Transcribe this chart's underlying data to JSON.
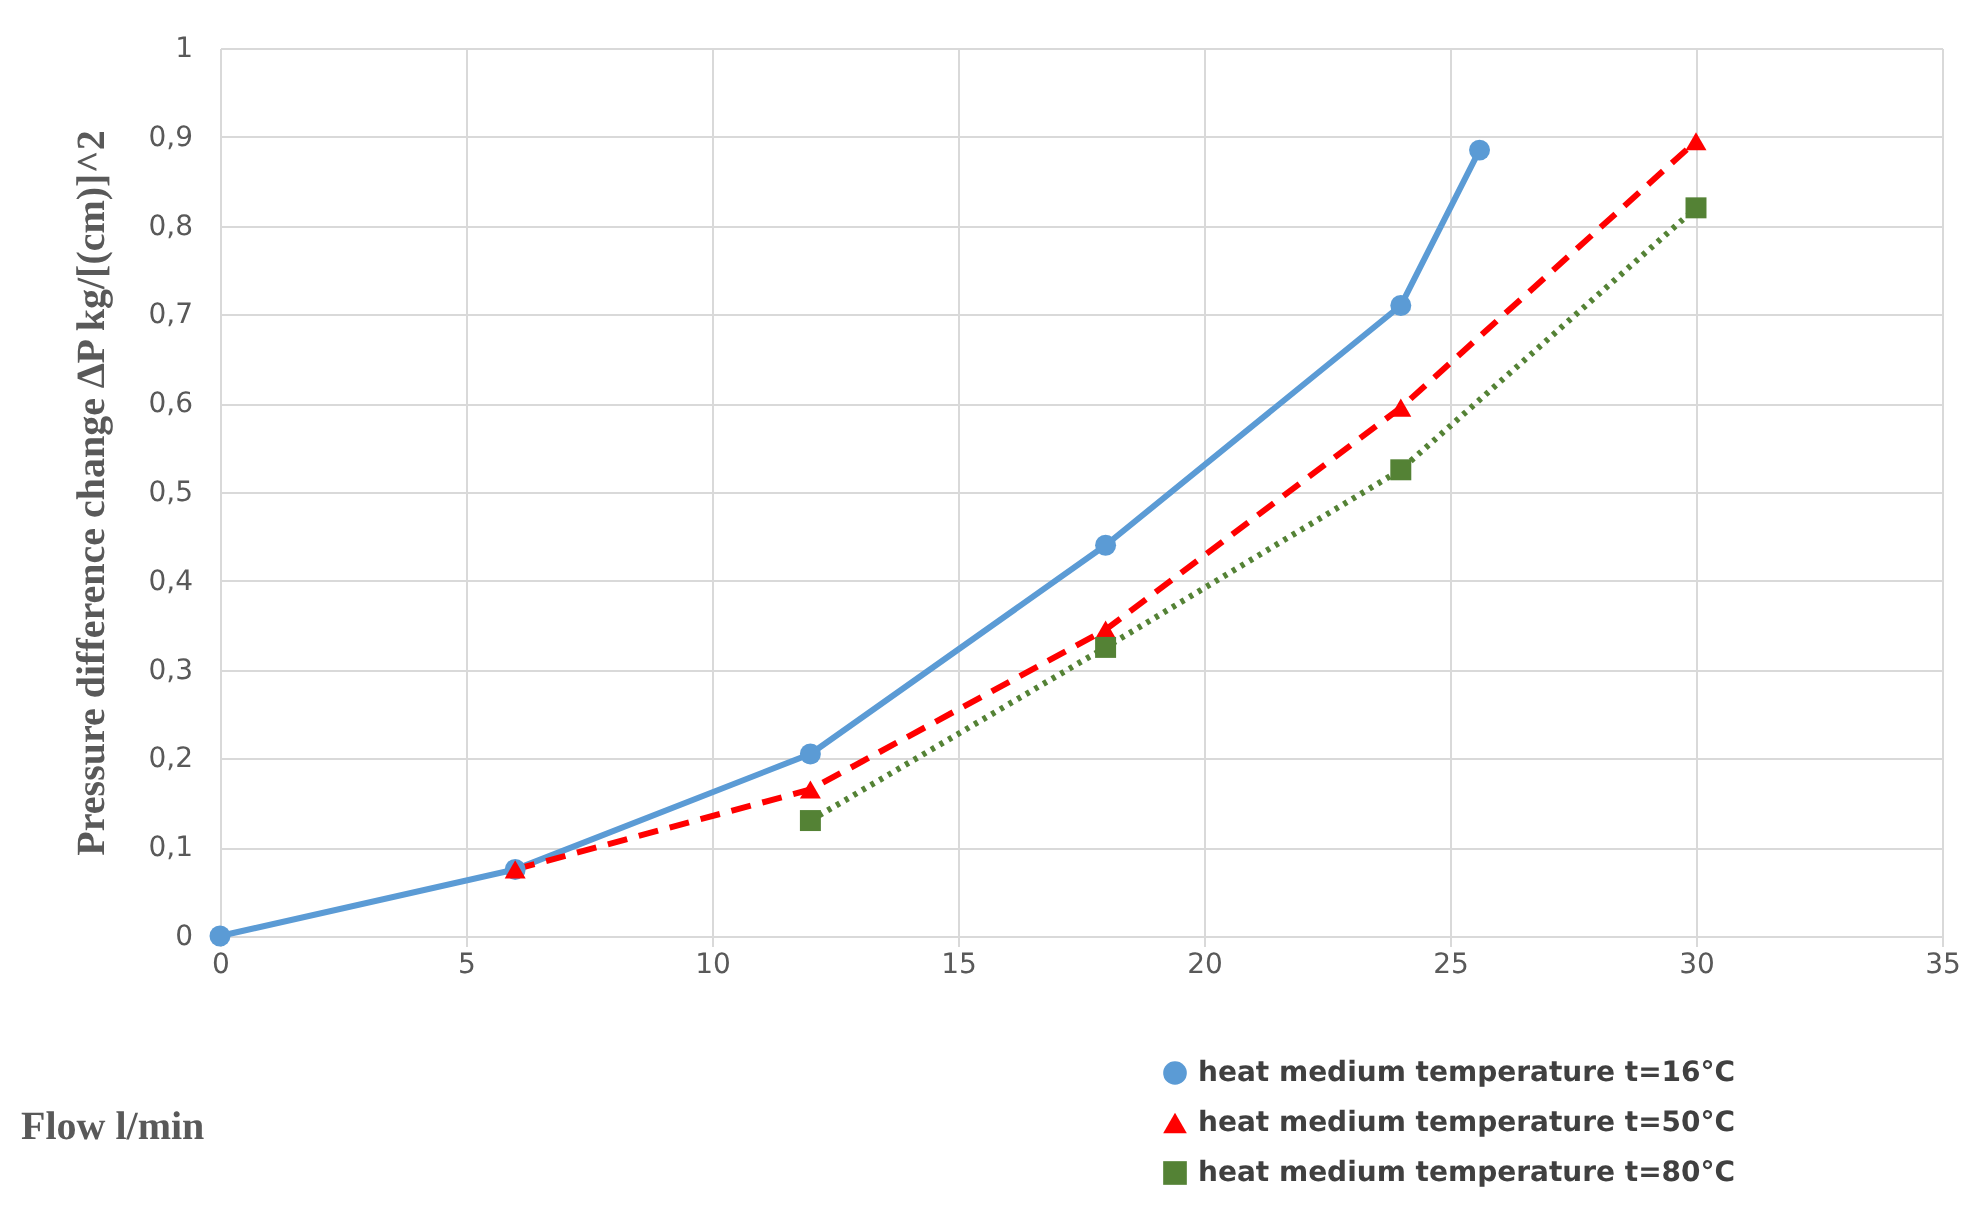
{
  "chart_data": {
    "type": "line",
    "xlabel": "Flow l/min",
    "ylabel": "Pressure difference change ∆P kg/[(cm)]^2",
    "xlim": [
      0,
      35
    ],
    "xticks": [
      0,
      5,
      10,
      15,
      20,
      25,
      30,
      35
    ],
    "ylim": [
      0,
      1
    ],
    "yticks": [
      0,
      {
        "value": 0.1,
        "label": "0,1"
      },
      {
        "value": 0.2,
        "label": "0,2"
      },
      {
        "value": 0.3,
        "label": "0,3"
      },
      {
        "value": 0.4,
        "label": "0,4"
      },
      {
        "value": 0.5,
        "label": "0,5"
      },
      {
        "value": 0.6,
        "label": "0,6"
      },
      {
        "value": 0.7,
        "label": "0,7"
      },
      {
        "value": 0.8,
        "label": "0,8"
      },
      {
        "value": 0.9,
        "label": "0,9"
      },
      1
    ],
    "grid": true,
    "legend": "bottom",
    "series": [
      {
        "name": "heat medium temperature t=16°C",
        "color": "#5b9bd5",
        "marker": "circle",
        "line_style": "solid",
        "x": [
          0,
          6,
          12,
          18,
          24,
          25.6
        ],
        "values": [
          0,
          0.075,
          0.205,
          0.44,
          0.71,
          0.885
        ]
      },
      {
        "name": "heat medium temperature t=50°C",
        "color": "#ff0000",
        "marker": "triangle",
        "line_style": "dashed",
        "x": [
          6,
          12,
          18,
          24,
          30
        ],
        "values": [
          0.075,
          0.165,
          0.345,
          0.595,
          0.895
        ]
      },
      {
        "name": "heat medium temperature t=80°C",
        "color": "#548235",
        "marker": "square",
        "line_style": "dotted",
        "x": [
          12,
          18,
          24,
          30
        ],
        "values": [
          0.13,
          0.325,
          0.525,
          0.82
        ]
      }
    ]
  }
}
